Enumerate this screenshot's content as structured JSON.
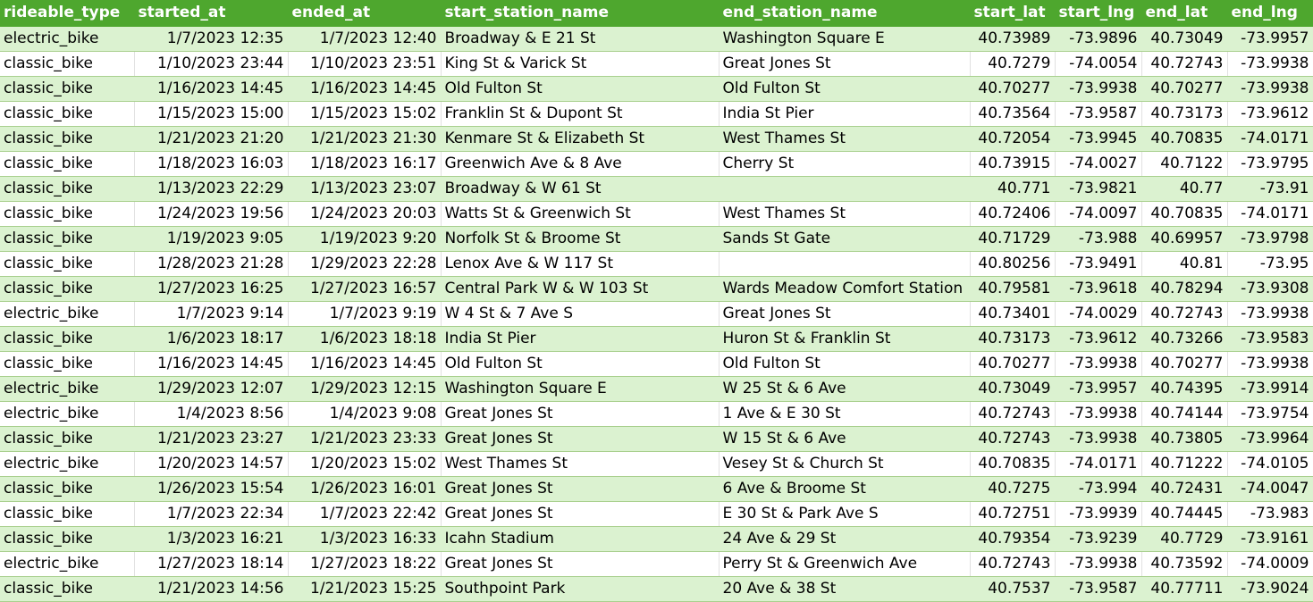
{
  "sheet": {
    "columns": [
      "rideable_type",
      "started_at",
      "ended_at",
      "start_station_name",
      "end_station_name",
      "start_lat",
      "start_lng",
      "end_lat",
      "end_lng"
    ],
    "rows": [
      [
        "electric_bike",
        "1/7/2023 12:35",
        "1/7/2023 12:40",
        "Broadway & E 21 St",
        "Washington Square E",
        "40.73989",
        "-73.9896",
        "40.73049",
        "-73.9957"
      ],
      [
        "classic_bike",
        "1/10/2023 23:44",
        "1/10/2023 23:51",
        "King St & Varick St",
        "Great Jones St",
        "40.7279",
        "-74.0054",
        "40.72743",
        "-73.9938"
      ],
      [
        "classic_bike",
        "1/16/2023 14:45",
        "1/16/2023 14:45",
        "Old Fulton St",
        "Old Fulton St",
        "40.70277",
        "-73.9938",
        "40.70277",
        "-73.9938"
      ],
      [
        "classic_bike",
        "1/15/2023 15:00",
        "1/15/2023 15:02",
        "Franklin St & Dupont St",
        "India St Pier",
        "40.73564",
        "-73.9587",
        "40.73173",
        "-73.9612"
      ],
      [
        "classic_bike",
        "1/21/2023 21:20",
        "1/21/2023 21:30",
        "Kenmare St & Elizabeth St",
        "West Thames St",
        "40.72054",
        "-73.9945",
        "40.70835",
        "-74.0171"
      ],
      [
        "classic_bike",
        "1/18/2023 16:03",
        "1/18/2023 16:17",
        "Greenwich Ave & 8 Ave",
        "Cherry St",
        "40.73915",
        "-74.0027",
        "40.7122",
        "-73.9795"
      ],
      [
        "classic_bike",
        "1/13/2023 22:29",
        "1/13/2023 23:07",
        "Broadway & W 61 St",
        "",
        "40.771",
        "-73.9821",
        "40.77",
        "-73.91"
      ],
      [
        "classic_bike",
        "1/24/2023 19:56",
        "1/24/2023 20:03",
        "Watts St & Greenwich St",
        "West Thames St",
        "40.72406",
        "-74.0097",
        "40.70835",
        "-74.0171"
      ],
      [
        "classic_bike",
        "1/19/2023 9:05",
        "1/19/2023 9:20",
        "Norfolk St & Broome St",
        "Sands St Gate",
        "40.71729",
        "-73.988",
        "40.69957",
        "-73.9798"
      ],
      [
        "classic_bike",
        "1/28/2023 21:28",
        "1/29/2023 22:28",
        "Lenox Ave & W 117 St",
        "",
        "40.80256",
        "-73.9491",
        "40.81",
        "-73.95"
      ],
      [
        "classic_bike",
        "1/27/2023 16:25",
        "1/27/2023 16:57",
        "Central Park W & W 103 St",
        "Wards Meadow Comfort Station",
        "40.79581",
        "-73.9618",
        "40.78294",
        "-73.9308"
      ],
      [
        "electric_bike",
        "1/7/2023 9:14",
        "1/7/2023 9:19",
        "W 4 St & 7 Ave S",
        "Great Jones St",
        "40.73401",
        "-74.0029",
        "40.72743",
        "-73.9938"
      ],
      [
        "classic_bike",
        "1/6/2023 18:17",
        "1/6/2023 18:18",
        "India St Pier",
        "Huron St & Franklin St",
        "40.73173",
        "-73.9612",
        "40.73266",
        "-73.9583"
      ],
      [
        "classic_bike",
        "1/16/2023 14:45",
        "1/16/2023 14:45",
        "Old Fulton St",
        "Old Fulton St",
        "40.70277",
        "-73.9938",
        "40.70277",
        "-73.9938"
      ],
      [
        "electric_bike",
        "1/29/2023 12:07",
        "1/29/2023 12:15",
        "Washington Square E",
        "W 25 St & 6 Ave",
        "40.73049",
        "-73.9957",
        "40.74395",
        "-73.9914"
      ],
      [
        "electric_bike",
        "1/4/2023 8:56",
        "1/4/2023 9:08",
        "Great Jones St",
        "1 Ave & E 30 St",
        "40.72743",
        "-73.9938",
        "40.74144",
        "-73.9754"
      ],
      [
        "classic_bike",
        "1/21/2023 23:27",
        "1/21/2023 23:33",
        "Great Jones St",
        "W 15 St & 6 Ave",
        "40.72743",
        "-73.9938",
        "40.73805",
        "-73.9964"
      ],
      [
        "electric_bike",
        "1/20/2023 14:57",
        "1/20/2023 15:02",
        "West Thames St",
        "Vesey St & Church St",
        "40.70835",
        "-74.0171",
        "40.71222",
        "-74.0105"
      ],
      [
        "classic_bike",
        "1/26/2023 15:54",
        "1/26/2023 16:01",
        "Great Jones St",
        "6 Ave & Broome St",
        "40.7275",
        "-73.994",
        "40.72431",
        "-74.0047"
      ],
      [
        "classic_bike",
        "1/7/2023 22:34",
        "1/7/2023 22:42",
        "Great Jones St",
        "E 30 St & Park Ave S",
        "40.72751",
        "-73.9939",
        "40.74445",
        "-73.983"
      ],
      [
        "classic_bike",
        "1/3/2023 16:21",
        "1/3/2023 16:33",
        "Icahn Stadium",
        "24 Ave & 29 St",
        "40.79354",
        "-73.9239",
        "40.7729",
        "-73.9161"
      ],
      [
        "electric_bike",
        "1/27/2023 18:14",
        "1/27/2023 18:22",
        "Great Jones St",
        "Perry St & Greenwich Ave",
        "40.72743",
        "-73.9938",
        "40.73592",
        "-74.0009"
      ],
      [
        "classic_bike",
        "1/21/2023 14:56",
        "1/21/2023 15:25",
        "Southpoint Park",
        "20 Ave & 38 St",
        "40.7537",
        "-73.9587",
        "40.77711",
        "-73.9024"
      ]
    ]
  },
  "colors": {
    "header_bg": "#4ea72e",
    "header_text": "#ffffff",
    "band_row_bg": "#dbf2d0",
    "plain_row_bg": "#ffffff"
  }
}
